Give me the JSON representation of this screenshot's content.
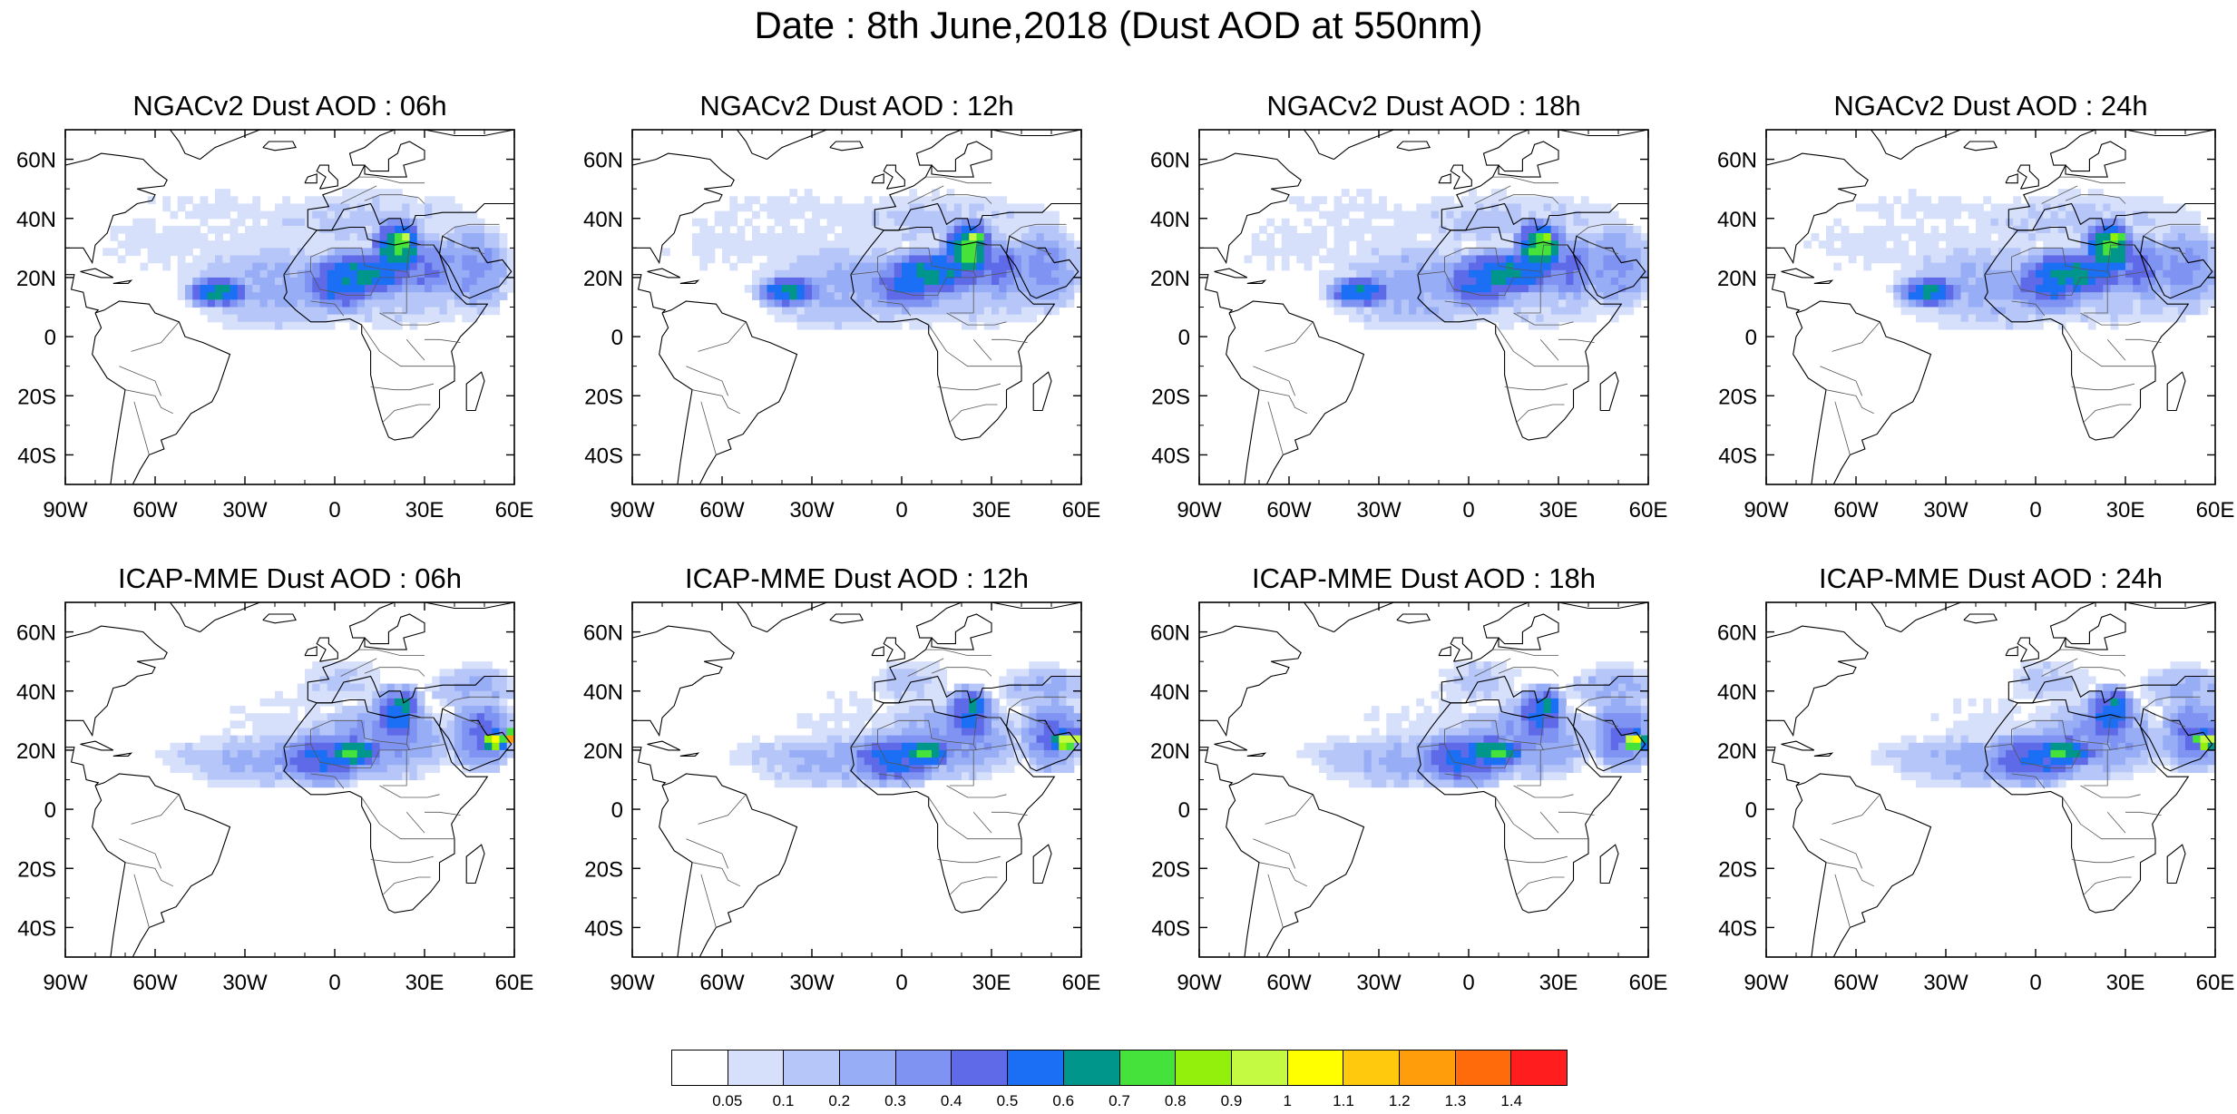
{
  "title": "Date : 8th June,2018 (Dust AOD at 550nm)",
  "panels": [
    {
      "title": "NGACv2 Dust AOD : 06h",
      "model": "ngac",
      "shift": 0
    },
    {
      "title": "NGACv2 Dust AOD : 12h",
      "model": "ngac",
      "shift": 2
    },
    {
      "title": "NGACv2 Dust AOD : 18h",
      "model": "ngac",
      "shift": 4
    },
    {
      "title": "NGACv2 Dust AOD : 24h",
      "model": "ngac",
      "shift": 6
    },
    {
      "title": "ICAP-MME Dust AOD : 06h",
      "model": "icap",
      "shift": 0
    },
    {
      "title": "ICAP-MME Dust AOD : 12h",
      "model": "icap",
      "shift": 2
    },
    {
      "title": "ICAP-MME Dust AOD : 18h",
      "model": "icap",
      "shift": 4
    },
    {
      "title": "ICAP-MME Dust AOD : 24h",
      "model": "icap",
      "shift": 6
    }
  ],
  "axes": {
    "lon_range": [
      -90,
      60
    ],
    "lat_range": [
      -50,
      70
    ],
    "lon_ticks": [
      -90,
      -60,
      -30,
      0,
      30,
      60
    ],
    "lon_tick_labels": [
      "90W",
      "60W",
      "30W",
      "0",
      "30E",
      "60E"
    ],
    "lat_ticks": [
      60,
      40,
      20,
      0,
      -20,
      -40
    ],
    "lat_tick_labels": [
      "60N",
      "40N",
      "20N",
      "0",
      "20S",
      "40S"
    ]
  },
  "colorbar": {
    "labels": [
      "0.05",
      "0.1",
      "0.2",
      "0.3",
      "0.4",
      "0.5",
      "0.6",
      "0.7",
      "0.8",
      "0.9",
      "1",
      "1.1",
      "1.2",
      "1.3",
      "1.4"
    ],
    "colors": [
      "#ffffff",
      "#d6e0fb",
      "#b7c6f8",
      "#97adf6",
      "#7f93f2",
      "#5f6ae8",
      "#1a6ff5",
      "#00968c",
      "#45e23b",
      "#93f00d",
      "#c4fa41",
      "#ffff00",
      "#ffc90e",
      "#ff9d0a",
      "#ff6a0a",
      "#ff1d1d"
    ]
  },
  "map_colors": {
    "coast": "#000000",
    "border": "#555555"
  }
}
